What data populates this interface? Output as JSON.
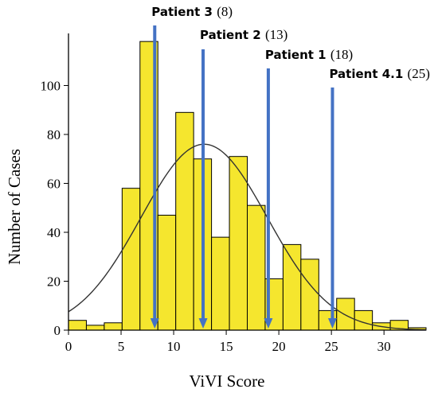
{
  "chart_data": {
    "type": "bar",
    "subtype": "histogram",
    "xlabel": "ViVI Score",
    "ylabel": "Number of Cases",
    "xlim": [
      0,
      34
    ],
    "ylim": [
      0,
      120
    ],
    "x_ticks": [
      0,
      5,
      10,
      15,
      20,
      25,
      30
    ],
    "y_ticks": [
      0,
      20,
      40,
      60,
      80,
      100
    ],
    "grid": false,
    "bin_width": 1.7,
    "bin_starts": [
      0,
      1.7,
      3.4,
      5.1,
      6.8,
      8.5,
      10.2,
      11.9,
      13.6,
      15.3,
      17.0,
      18.7,
      20.4,
      22.1,
      23.8,
      25.5,
      27.2,
      28.9,
      30.6,
      32.3
    ],
    "values": [
      4,
      2,
      3,
      58,
      118,
      47,
      89,
      70,
      38,
      71,
      51,
      21,
      35,
      29,
      8,
      13,
      8,
      3,
      4,
      1
    ],
    "bar_color": "#f5e62e",
    "normal_curve": {
      "mean": 12.9,
      "sd": 6.0,
      "peak": 76,
      "color": "#333333"
    },
    "annotations": [
      {
        "name": "Patient 3",
        "score": "(8)",
        "x": 8.2
      },
      {
        "name": "Patient 2",
        "score": "(13)",
        "x": 12.8
      },
      {
        "name": "Patient 1",
        "score": "(18)",
        "x": 19.0
      },
      {
        "name": "Patient 4.1",
        "score": "(25)",
        "x": 25.1
      }
    ],
    "arrow_color": "#4472c4"
  }
}
